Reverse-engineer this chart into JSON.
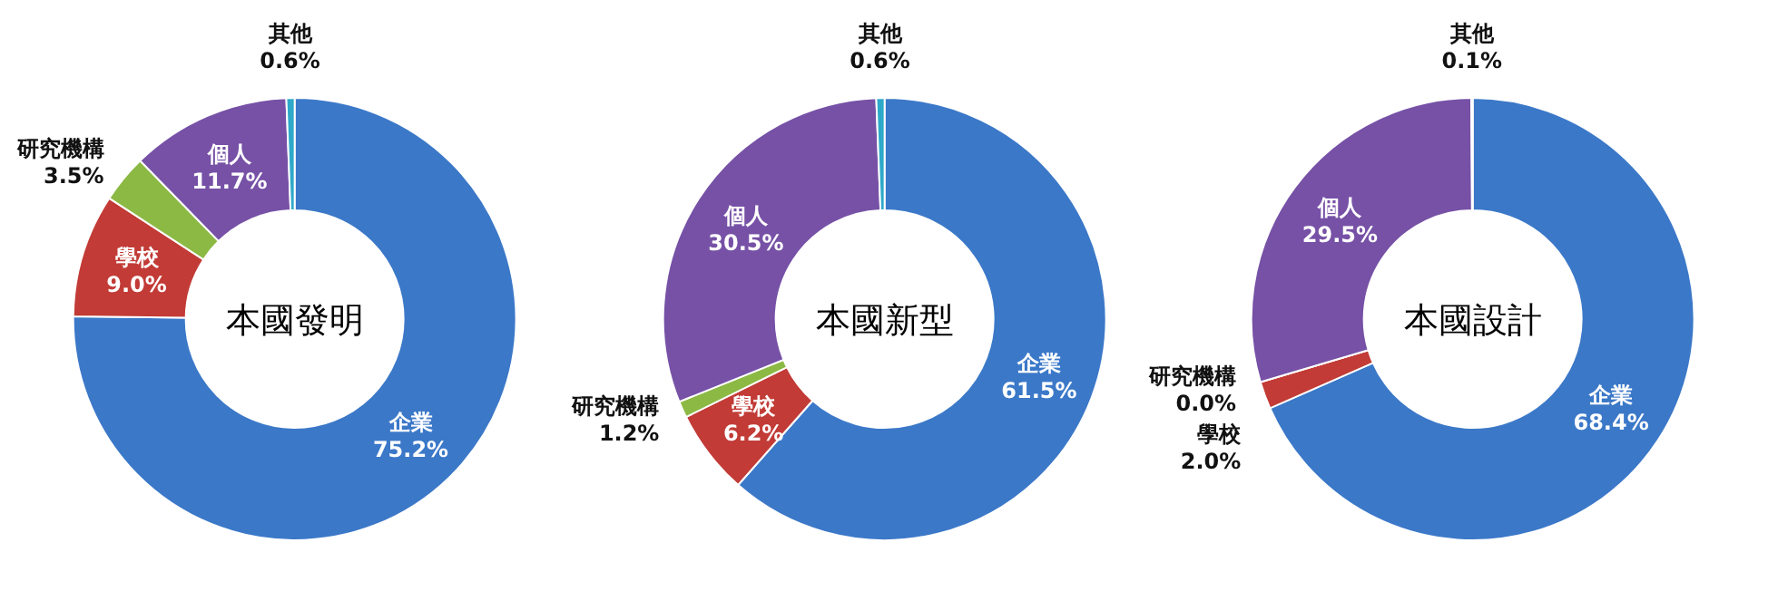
{
  "chart_data": [
    {
      "type": "donut",
      "title": "本國發明",
      "categories": [
        "企業",
        "學校",
        "研究機構",
        "個人",
        "其他"
      ],
      "values": [
        75.2,
        9.0,
        3.5,
        11.7,
        0.6
      ],
      "value_labels": [
        "75.2%",
        "9.0%",
        "3.5%",
        "11.7%",
        "0.6%"
      ],
      "colors": [
        "#3b78c8",
        "#c23b36",
        "#8cb944",
        "#7651a6",
        "#2fa9c9"
      ]
    },
    {
      "type": "donut",
      "title": "本國新型",
      "categories": [
        "企業",
        "學校",
        "研究機構",
        "個人",
        "其他"
      ],
      "values": [
        61.5,
        6.2,
        1.2,
        30.5,
        0.6
      ],
      "value_labels": [
        "61.5%",
        "6.2%",
        "1.2%",
        "30.5%",
        "0.6%"
      ],
      "colors": [
        "#3b78c8",
        "#c23b36",
        "#8cb944",
        "#7651a6",
        "#2fa9c9"
      ]
    },
    {
      "type": "donut",
      "title": "本國設計",
      "categories": [
        "企業",
        "學校",
        "研究機構",
        "個人",
        "其他"
      ],
      "values": [
        68.4,
        2.0,
        0.0,
        29.5,
        0.1
      ],
      "value_labels": [
        "68.4%",
        "2.0%",
        "0.0%",
        "29.5%",
        "0.1%"
      ],
      "colors": [
        "#3b78c8",
        "#c23b36",
        "#8cb944",
        "#7651a6",
        "#2fa9c9"
      ]
    }
  ]
}
